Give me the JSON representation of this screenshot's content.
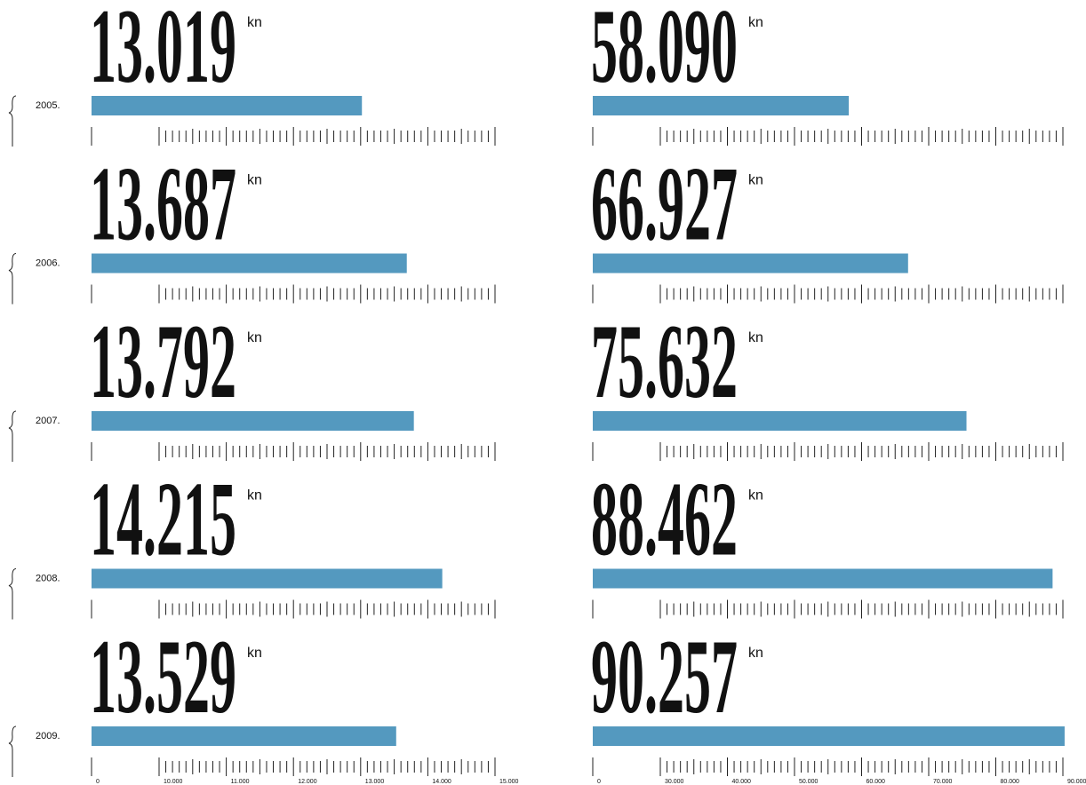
{
  "chart_data": [
    {
      "type": "bar",
      "unit": "kn",
      "color": "#5499bf",
      "categories": [
        "2005.",
        "2006.",
        "2007.",
        "2008.",
        "2009."
      ],
      "values": [
        13019,
        13687,
        13792,
        14215,
        13529
      ],
      "value_labels": [
        "13.019",
        "13.687",
        "13.792",
        "14.215",
        "13.529"
      ],
      "xlim": [
        10000,
        15000
      ],
      "xticks": [
        0,
        {
          "value": 10000,
          "label": "10.000"
        },
        {
          "value": 11000,
          "label": "11.000"
        },
        {
          "value": 12000,
          "label": "12.000"
        },
        {
          "value": 13000,
          "label": "13.000"
        },
        {
          "value": 14000,
          "label": "14.000"
        },
        {
          "value": 15000,
          "label": "15.000"
        }
      ]
    },
    {
      "type": "bar",
      "unit": "kn",
      "color": "#5499bf",
      "values": [
        58090,
        66927,
        75632,
        88462,
        90257
      ],
      "value_labels": [
        "58.090",
        "66.927",
        "75.632",
        "88.462",
        "90.257"
      ],
      "xlim": [
        30000,
        90000
      ],
      "xticks": [
        0,
        {
          "value": 30000,
          "label": "30.000"
        },
        {
          "value": 40000,
          "label": "40.000"
        },
        {
          "value": 50000,
          "label": "50.000"
        },
        {
          "value": 60000,
          "label": "60.000"
        },
        {
          "value": 70000,
          "label": "70.000"
        },
        {
          "value": 80000,
          "label": "80.000"
        },
        {
          "value": 90000,
          "label": "90.000"
        }
      ]
    }
  ]
}
